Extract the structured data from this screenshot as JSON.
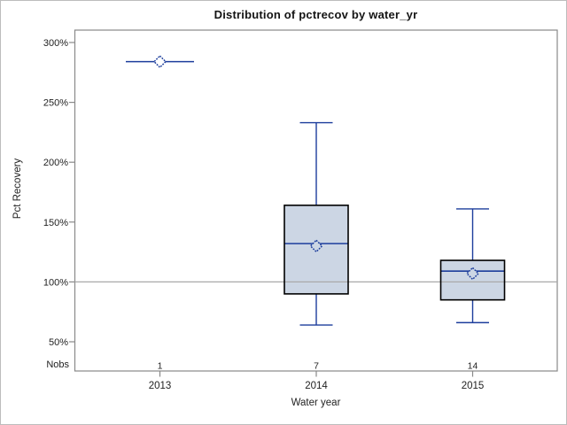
{
  "chart_data": {
    "type": "boxplot",
    "title": "Distribution of pctrecov by water_yr",
    "xlabel": "Water year",
    "ylabel": "Pct Recovery",
    "y_axis": {
      "ticks": [
        300,
        250,
        200,
        150,
        100,
        50
      ],
      "tick_suffix": "%",
      "min": 26,
      "max": 310
    },
    "reference_line": {
      "value": 100
    },
    "grid": false,
    "legend": "none",
    "nobs_label": "Nobs",
    "categories": [
      "2013",
      "2014",
      "2015"
    ],
    "nobs": [
      "1",
      "7",
      "14"
    ],
    "boxes": [
      {
        "category": "2013",
        "n": 1,
        "min": 284,
        "q1": 284,
        "median": 284,
        "q3": 284,
        "max": 284,
        "mean": 284
      },
      {
        "category": "2014",
        "n": 7,
        "min": 64,
        "q1": 90,
        "median": 132,
        "q3": 164,
        "max": 233,
        "mean": 130
      },
      {
        "category": "2015",
        "n": 14,
        "min": 66,
        "q1": 85,
        "median": 109,
        "q3": 118,
        "max": 161,
        "mean": 107
      }
    ],
    "colors": {
      "box_fill": "#ccd6e4",
      "box_border": "#000000",
      "line": "#1c3d9c",
      "reference_line": "#a9a9a9",
      "axis": "#898989",
      "text": "#222222",
      "background": "#ffffff",
      "figure_border": "#bdbdbd"
    }
  }
}
